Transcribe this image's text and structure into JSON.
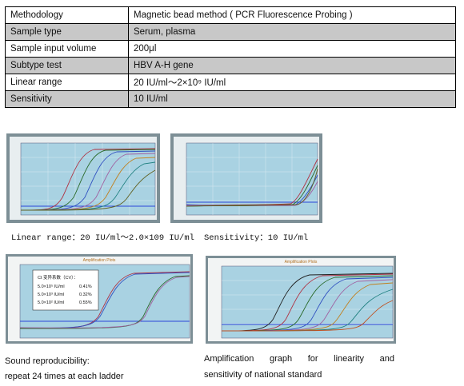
{
  "spec_table": {
    "rows": [
      {
        "label": "Methodology",
        "value": "Magnetic bead method ( PCR Fluorescence Probing )"
      },
      {
        "label": "Sample type",
        "value": "Serum, plasma"
      },
      {
        "label": "Sample input volume",
        "value": "200μl"
      },
      {
        "label": "Subtype test",
        "value": "HBV A-H gene"
      },
      {
        "label": "Linear range",
        "value": "20 IU/ml～2×10⁹ IU/ml"
      },
      {
        "label": "Sensitivity",
        "value": "10 IU/ml"
      }
    ]
  },
  "figures": {
    "linear_range_caption": "Linear range：20 IU/ml～2.0×109 IU/ml",
    "sensitivity_caption": "Sensitivity：10 IU/ml",
    "reproducibility_caption_line1": "Sound reproducibility:",
    "reproducibility_caption_line2": "repeat 24 times at each ladder",
    "amplification_caption_line1_words": [
      "Amplification",
      "graph",
      "for",
      "linearity",
      "and"
    ],
    "amplification_caption_line2": "sensitivity of national standard",
    "cv_box": {
      "title": "Ct 变异系数（CV）：",
      "rows": [
        {
          "conc": "5.0×10⁵ IU/ml",
          "cv": "0.41%"
        },
        {
          "conc": "5.0×10³ IU/ml",
          "cv": "0.32%"
        },
        {
          "conc": "5.0×10² IU/ml",
          "cv": "0.55%"
        }
      ]
    },
    "plot_titles": {
      "reproducibility": "Amplification Plots",
      "amplification": "Amplification Plots"
    }
  },
  "colors": {
    "frame": "#7d8f96",
    "plot_bg": "#a9d2e2",
    "threshold": "#2a45d8",
    "table_shade": "#c8c8c8"
  }
}
